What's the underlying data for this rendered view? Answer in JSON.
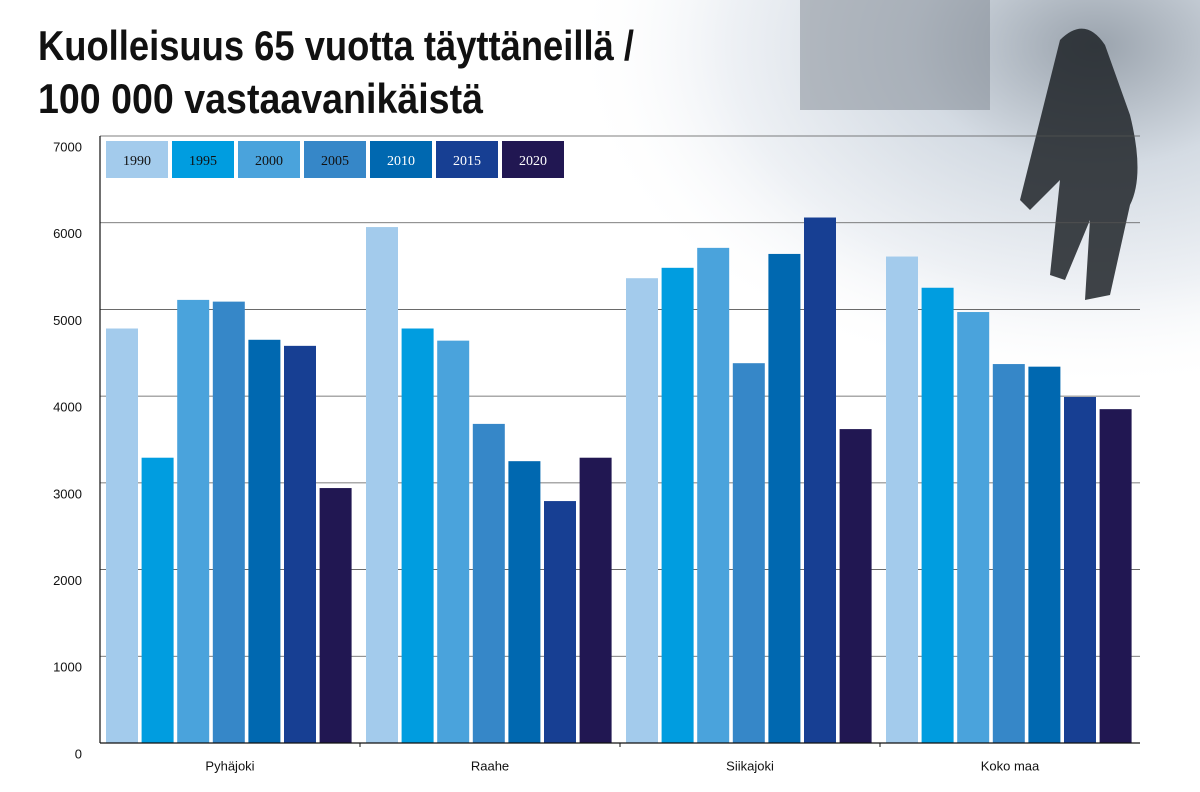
{
  "chart_data": {
    "type": "bar",
    "title": [
      "Kuolleisuus 65 vuotta täyttäneillä /",
      "100 000 vastaavanikäistä"
    ],
    "categories": [
      "Pyhäjoki",
      "Raahe",
      "Siikajoki",
      "Koko maa"
    ],
    "series": [
      {
        "name": "1990",
        "color": "#a3cbec",
        "values": [
          4780,
          5950,
          5360,
          5610
        ]
      },
      {
        "name": "1995",
        "color": "#009de0",
        "values": [
          3290,
          4780,
          5480,
          5250
        ]
      },
      {
        "name": "2000",
        "color": "#4aa3dc",
        "values": [
          5110,
          4640,
          5710,
          4970
        ]
      },
      {
        "name": "2005",
        "color": "#3687c8",
        "values": [
          5090,
          3680,
          4380,
          4370
        ]
      },
      {
        "name": "2010",
        "color": "#0068b0",
        "values": [
          4650,
          3250,
          5640,
          4340
        ]
      },
      {
        "name": "2015",
        "color": "#173f93",
        "values": [
          4580,
          2790,
          6060,
          3990
        ]
      },
      {
        "name": "2020",
        "color": "#211752",
        "values": [
          2940,
          3290,
          3620,
          3850
        ]
      }
    ],
    "ylim": [
      0,
      7000
    ],
    "yticks": [
      0,
      1000,
      2000,
      3000,
      4000,
      5000,
      6000,
      7000
    ],
    "grid": true
  }
}
